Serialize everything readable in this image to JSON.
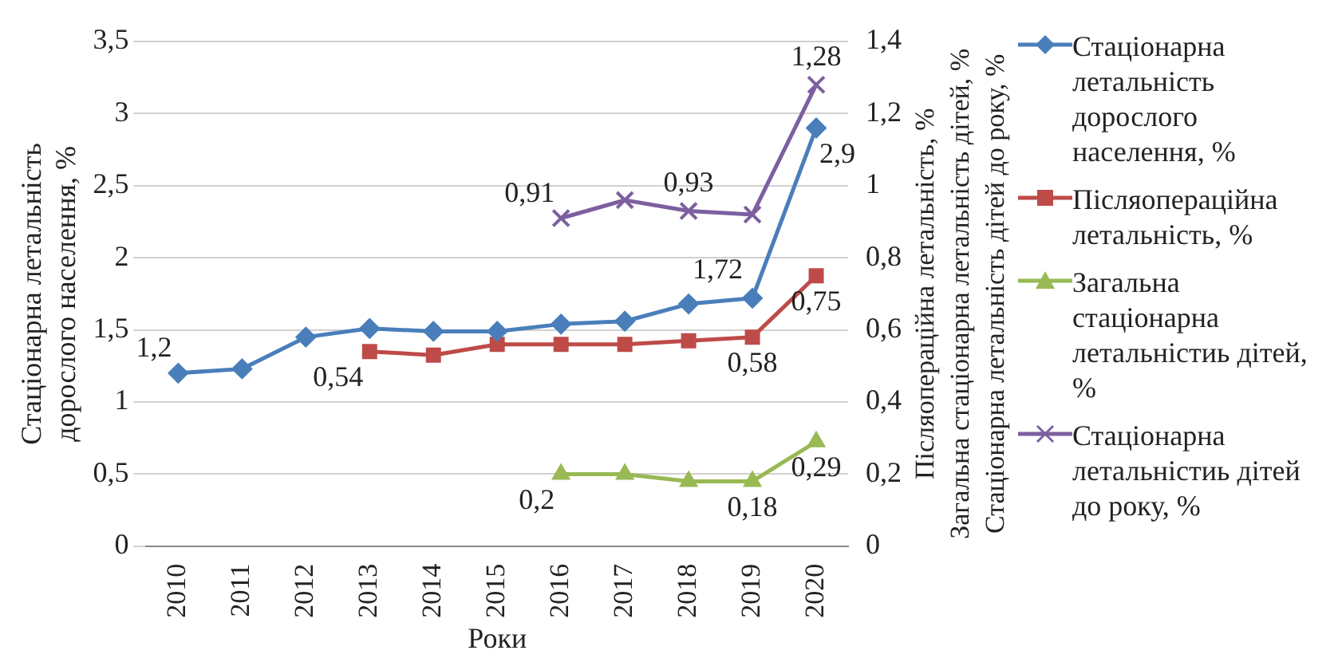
{
  "chart_data": {
    "type": "line",
    "xlabel": "Роки",
    "ylabel": "Стаціонарна летальність дорослого населення, %",
    "y2label": "Післяопераційна летальність, %\nЗагальна стаціонарна летальність дітей, %\nСтаціонарна летальність дітей до року, %",
    "categories": [
      "2010",
      "2011",
      "2012",
      "2013",
      "2014",
      "2015",
      "2016",
      "2017",
      "2018",
      "2019",
      "2020"
    ],
    "ylim": [
      0,
      3.5
    ],
    "yticks": [
      {
        "value": 0,
        "label": "0"
      },
      {
        "value": 0.5,
        "label": "0,5"
      },
      {
        "value": 1,
        "label": "1"
      },
      {
        "value": 1.5,
        "label": "1,5"
      },
      {
        "value": 2,
        "label": "2"
      },
      {
        "value": 2.5,
        "label": "2,5"
      },
      {
        "value": 3,
        "label": "3"
      },
      {
        "value": 3.5,
        "label": "3,5"
      }
    ],
    "y2lim": [
      0,
      1.4
    ],
    "y2ticks": [
      {
        "value": 0,
        "label": "0"
      },
      {
        "value": 0.2,
        "label": "0,2"
      },
      {
        "value": 0.4,
        "label": "0,4"
      },
      {
        "value": 0.6,
        "label": "0,6"
      },
      {
        "value": 0.8,
        "label": "0,8"
      },
      {
        "value": 1,
        "label": "1"
      },
      {
        "value": 1.2,
        "label": "1,2"
      },
      {
        "value": 1.4,
        "label": "1,4"
      }
    ],
    "grid": "y",
    "legend": "right",
    "series": [
      {
        "name": "Стаціонарна летальність дорослого населення, %",
        "color": "#4a7ebb",
        "marker": "diamond",
        "values": [
          1.2,
          1.23,
          1.45,
          1.51,
          1.49,
          1.49,
          1.54,
          1.56,
          1.68,
          1.72,
          2.9
        ],
        "value_labels": [
          "1,2",
          null,
          null,
          null,
          null,
          null,
          null,
          null,
          null,
          "1,72",
          "2,9"
        ]
      },
      {
        "name": "Післяопераційна летальність, %",
        "color": "#be4b48",
        "marker": "square",
        "axis": "y2",
        "values": [
          null,
          null,
          null,
          0.54,
          0.53,
          0.56,
          0.56,
          0.56,
          0.57,
          0.58,
          0.75
        ],
        "value_labels": [
          null,
          null,
          null,
          "0,54",
          null,
          null,
          null,
          null,
          null,
          "0,58",
          "0,75"
        ]
      },
      {
        "name": "Загальна стаціонарна летальністиь дітей, %",
        "color": "#98b954",
        "marker": "triangle",
        "axis": "y2",
        "values": [
          null,
          null,
          null,
          null,
          null,
          null,
          0.2,
          0.2,
          0.18,
          0.18,
          0.29
        ],
        "value_labels": [
          null,
          null,
          null,
          null,
          null,
          null,
          "0,2",
          null,
          null,
          "0,18",
          "0,29"
        ]
      },
      {
        "name": "Стаціонарна летальністиь дітей до року, %",
        "color": "#7d5fa0",
        "marker": "cross",
        "axis": "y2",
        "values": [
          null,
          null,
          null,
          null,
          null,
          null,
          0.91,
          0.96,
          0.93,
          0.92,
          1.28
        ],
        "value_labels": [
          null,
          null,
          null,
          null,
          null,
          null,
          "0,91",
          null,
          "0,93",
          null,
          "1,28"
        ]
      }
    ]
  }
}
